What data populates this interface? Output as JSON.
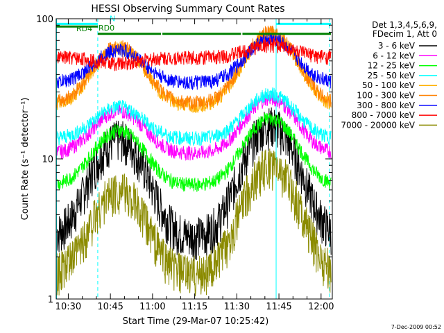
{
  "chart_data": {
    "type": "line",
    "title": "HESSI Observing Summary Count Rates",
    "xlabel": "Start Time (29-Mar-07 10:25:42)",
    "ylabel": "Count Rate (s⁻¹ detector⁻¹)",
    "yscale": "log",
    "ylim": [
      1,
      100
    ],
    "xlim_minutes": [
      "10:25:42",
      "12:04:00"
    ],
    "x_ticks": [
      "10:30",
      "10:45",
      "11:00",
      "11:15",
      "11:30",
      "11:45",
      "12:00"
    ],
    "y_ticks": [
      "1",
      "10",
      "100"
    ],
    "legend_header": [
      "Det 1,3,4,5,6,9,",
      "FDecim 1, Att 0"
    ],
    "legend_placement": "right",
    "footer_date": "7-Dec-2009 00:52",
    "flag_labels": [
      "RD4",
      "RD0",
      "N"
    ],
    "series": [
      {
        "name": "3 - 6 keV",
        "color": "#000000",
        "x": [
          10.5,
          10.75,
          11.0,
          11.25,
          11.5,
          11.67,
          12.0
        ],
        "y": [
          2.8,
          14,
          3.5,
          3.5,
          3.5,
          17.5,
          2.6
        ]
      },
      {
        "name": "6 - 12 keV",
        "color": "#ff00ff",
        "x": [
          10.5,
          10.75,
          11.0,
          11.25,
          11.5,
          11.67,
          12.0
        ],
        "y": [
          11,
          22,
          11.5,
          11.5,
          11.5,
          27,
          11.5
        ]
      },
      {
        "name": "12 - 25 keV",
        "color": "#00ff00",
        "x": [
          10.5,
          10.75,
          11.0,
          11.25,
          11.5,
          11.67,
          12.0
        ],
        "y": [
          6.5,
          16,
          6.5,
          6.5,
          6.5,
          19.5,
          6.5
        ]
      },
      {
        "name": "25 - 50 keV",
        "color": "#00ffff",
        "x": [
          10.5,
          10.75,
          11.0,
          11.25,
          11.5,
          11.67,
          12.0
        ],
        "y": [
          14,
          23.5,
          14,
          14,
          14,
          29,
          14
        ]
      },
      {
        "name": "50 - 100 keV",
        "color": "#ffb000",
        "x": [
          10.5,
          10.75,
          11.0,
          11.25,
          11.5,
          11.67,
          12.0
        ],
        "y": [
          24,
          62,
          24,
          24,
          24,
          78,
          26
        ]
      },
      {
        "name": "100 - 300 keV",
        "color": "#ff8000",
        "x": [
          10.5,
          10.75,
          11.0,
          11.25,
          11.5,
          11.67,
          12.0
        ],
        "y": [
          25,
          64,
          25,
          25,
          25,
          80,
          27
        ]
      },
      {
        "name": "300 - 800 keV",
        "color": "#0000ff",
        "x": [
          10.5,
          10.75,
          11.0,
          11.25,
          11.5,
          11.67,
          12.0
        ],
        "y": [
          35,
          60,
          35,
          35,
          35,
          72,
          35
        ]
      },
      {
        "name": "800 - 7000 keV",
        "color": "#ff0000",
        "x": [
          10.5,
          10.75,
          11.0,
          11.25,
          11.5,
          11.67,
          12.0
        ],
        "y": [
          53,
          48,
          53,
          53,
          53,
          65,
          53
        ]
      },
      {
        "name": "7000 - 20000 keV",
        "color": "#8b8b00",
        "x": [
          10.5,
          10.75,
          11.0,
          11.25,
          11.5,
          11.67,
          12.0
        ],
        "y": [
          1.5,
          6,
          1.5,
          1.5,
          1.5,
          9,
          1.5
        ]
      }
    ]
  }
}
